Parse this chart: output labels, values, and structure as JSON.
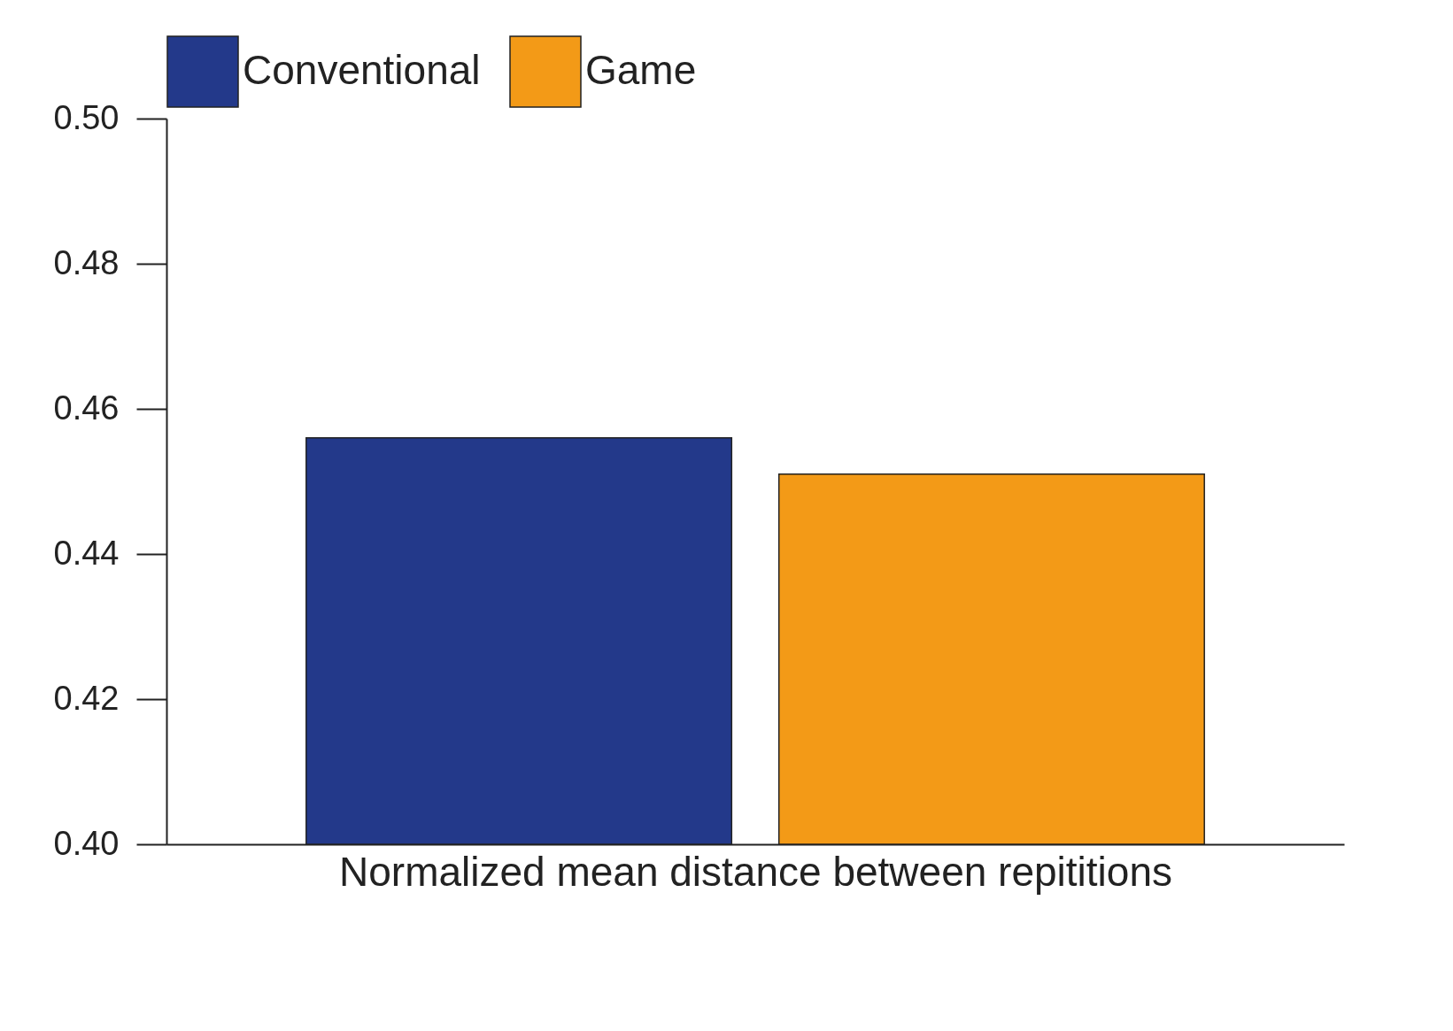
{
  "chart_data": {
    "type": "bar",
    "xlabel": "Normalized mean distance between repititions",
    "categories": [
      null
    ],
    "series": [
      {
        "name": "Conventional",
        "color": "#23398a",
        "values": [
          0.456
        ]
      },
      {
        "name": "Game",
        "color": "#f39a17",
        "values": [
          0.451
        ]
      }
    ],
    "ylim": [
      0.4,
      0.5
    ],
    "yticks": [
      {
        "value": 0.4,
        "label": "0.40"
      },
      0.42,
      0.44,
      0.46,
      0.48,
      {
        "value": 0.5,
        "label": "0.50"
      }
    ],
    "grid": false,
    "legend": "top left"
  }
}
